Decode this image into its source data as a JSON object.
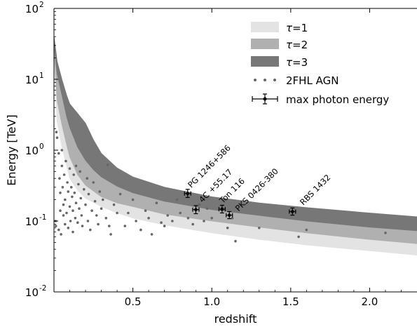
{
  "chart_data": {
    "type": "line",
    "xlabel": "redshift",
    "ylabel": "Energy [TeV]",
    "xlim": [
      0.0,
      2.3
    ],
    "ylim": [
      0.01,
      100
    ],
    "yscale": "log",
    "x_ticks": [
      {
        "value": 0.5,
        "label": "0.5"
      },
      {
        "value": 1.0,
        "label": "1.0"
      },
      {
        "value": 1.5,
        "label": "1.5"
      },
      {
        "value": 2.0,
        "label": "2.0"
      }
    ],
    "y_ticks": [
      {
        "value": 0.01,
        "base": "10",
        "exp": "-2"
      },
      {
        "value": 0.1,
        "base": "10",
        "exp": "-1"
      },
      {
        "value": 1,
        "base": "10",
        "exp": "0"
      },
      {
        "value": 10,
        "base": "10",
        "exp": "1"
      },
      {
        "value": 100,
        "base": "10",
        "exp": "2"
      }
    ],
    "legend_position": "upper right",
    "bands": [
      {
        "name": "τ=1",
        "tau": "τ",
        "suffix": "=1",
        "color": "#e3e3e3",
        "z": [
          0.001,
          0.02,
          0.05,
          0.08,
          0.1,
          0.15,
          0.2,
          0.3,
          0.4,
          0.5,
          0.7,
          1.0,
          1.3,
          1.6,
          2.0,
          2.3
        ],
        "upper": [
          25,
          5.0,
          2.3,
          1.2,
          0.8,
          0.45,
          0.32,
          0.22,
          0.18,
          0.16,
          0.125,
          0.1,
          0.082,
          0.068,
          0.055,
          0.048
        ],
        "lower": [
          18,
          2.5,
          1.1,
          0.6,
          0.4,
          0.27,
          0.21,
          0.16,
          0.13,
          0.11,
          0.088,
          0.068,
          0.055,
          0.046,
          0.038,
          0.033
        ]
      },
      {
        "name": "τ=2",
        "tau": "τ",
        "suffix": "=2",
        "color": "#b0b0b0",
        "z": [
          0.001,
          0.02,
          0.05,
          0.08,
          0.1,
          0.15,
          0.2,
          0.3,
          0.4,
          0.5,
          0.7,
          1.0,
          1.3,
          1.6,
          2.0,
          2.3
        ],
        "upper": [
          30,
          12,
          6.0,
          3.0,
          2.1,
          1.1,
          0.72,
          0.42,
          0.31,
          0.25,
          0.19,
          0.145,
          0.12,
          0.1,
          0.082,
          0.073
        ],
        "lower": [
          25,
          5.0,
          2.3,
          1.2,
          0.8,
          0.45,
          0.32,
          0.22,
          0.18,
          0.16,
          0.125,
          0.1,
          0.082,
          0.068,
          0.055,
          0.048
        ]
      },
      {
        "name": "τ=3",
        "tau": "τ",
        "suffix": "=3",
        "color": "#777777",
        "z": [
          0.001,
          0.02,
          0.05,
          0.08,
          0.1,
          0.15,
          0.2,
          0.25,
          0.3,
          0.4,
          0.5,
          0.7,
          1.0,
          1.3,
          1.6,
          2.0,
          2.3
        ],
        "upper": [
          40,
          18,
          10,
          6.0,
          4.5,
          3.3,
          2.4,
          1.4,
          0.9,
          0.56,
          0.42,
          0.3,
          0.22,
          0.18,
          0.155,
          0.13,
          0.115
        ],
        "lower": [
          30,
          12,
          6.0,
          3.0,
          2.1,
          1.1,
          0.72,
          0.53,
          0.42,
          0.31,
          0.25,
          0.19,
          0.145,
          0.12,
          0.1,
          0.082,
          0.073
        ]
      }
    ],
    "agn_series": {
      "name": "2FHL AGN",
      "color": "#666666",
      "points": [
        [
          0.01,
          0.1
        ],
        [
          0.012,
          0.085
        ],
        [
          0.015,
          1.8
        ],
        [
          0.02,
          1.5
        ],
        [
          0.03,
          0.9
        ],
        [
          0.03,
          0.075
        ],
        [
          0.035,
          0.4
        ],
        [
          0.04,
          0.25
        ],
        [
          0.04,
          0.14
        ],
        [
          0.045,
          0.065
        ],
        [
          0.05,
          0.6
        ],
        [
          0.05,
          1.0
        ],
        [
          0.055,
          0.3
        ],
        [
          0.06,
          0.17
        ],
        [
          0.06,
          0.12
        ],
        [
          0.065,
          0.45
        ],
        [
          0.07,
          0.2
        ],
        [
          0.07,
          0.09
        ],
        [
          0.075,
          0.7
        ],
        [
          0.08,
          0.13
        ],
        [
          0.085,
          0.35
        ],
        [
          0.09,
          0.08
        ],
        [
          0.09,
          0.26
        ],
        [
          0.1,
          0.16
        ],
        [
          0.1,
          0.55
        ],
        [
          0.105,
          0.1
        ],
        [
          0.11,
          0.3
        ],
        [
          0.115,
          0.22
        ],
        [
          0.12,
          0.07
        ],
        [
          0.12,
          0.14
        ],
        [
          0.125,
          0.45
        ],
        [
          0.13,
          0.25
        ],
        [
          0.135,
          0.11
        ],
        [
          0.14,
          0.6
        ],
        [
          0.14,
          0.18
        ],
        [
          0.15,
          0.095
        ],
        [
          0.155,
          0.33
        ],
        [
          0.16,
          0.15
        ],
        [
          0.165,
          0.5
        ],
        [
          0.17,
          0.21
        ],
        [
          0.175,
          0.12
        ],
        [
          0.18,
          0.085
        ],
        [
          0.19,
          0.28
        ],
        [
          0.2,
          0.17
        ],
        [
          0.21,
          0.4
        ],
        [
          0.215,
          0.1
        ],
        [
          0.22,
          0.24
        ],
        [
          0.23,
          0.075
        ],
        [
          0.24,
          0.14
        ],
        [
          0.25,
          0.35
        ],
        [
          0.26,
          0.19
        ],
        [
          0.27,
          0.12
        ],
        [
          0.28,
          0.09
        ],
        [
          0.29,
          0.26
        ],
        [
          0.3,
          0.15
        ],
        [
          0.31,
          0.2
        ],
        [
          0.33,
          0.11
        ],
        [
          0.34,
          0.62
        ],
        [
          0.35,
          0.085
        ],
        [
          0.36,
          0.065
        ],
        [
          0.38,
          0.17
        ],
        [
          0.4,
          0.13
        ],
        [
          0.42,
          0.24
        ],
        [
          0.45,
          0.085
        ],
        [
          0.47,
          0.13
        ],
        [
          0.5,
          0.2
        ],
        [
          0.52,
          0.1
        ],
        [
          0.55,
          0.075
        ],
        [
          0.58,
          0.14
        ],
        [
          0.6,
          0.11
        ],
        [
          0.62,
          0.065
        ],
        [
          0.65,
          0.18
        ],
        [
          0.68,
          0.095
        ],
        [
          0.7,
          0.085
        ],
        [
          0.72,
          0.12
        ],
        [
          0.75,
          0.1
        ],
        [
          0.78,
          0.2
        ],
        [
          0.8,
          0.13
        ],
        [
          0.85,
          0.11
        ],
        [
          0.88,
          0.09
        ],
        [
          0.92,
          0.17
        ],
        [
          0.95,
          0.1
        ],
        [
          0.97,
          0.15
        ],
        [
          1.0,
          0.11
        ],
        [
          1.1,
          0.08
        ],
        [
          1.13,
          0.11
        ],
        [
          1.15,
          0.052
        ],
        [
          1.3,
          0.08
        ],
        [
          1.55,
          0.06
        ],
        [
          1.6,
          0.075
        ],
        [
          2.1,
          0.068
        ]
      ]
    },
    "max_photon_series": {
      "name": "max photon energy",
      "points": [
        {
          "label": "PG 1246+586",
          "z": 0.847,
          "zerr": 0.02,
          "e": 0.245,
          "elo": 0.215,
          "ehi": 0.28
        },
        {
          "label": "4C +55.17",
          "z": 0.899,
          "zerr": 0.02,
          "e": 0.145,
          "elo": 0.127,
          "ehi": 0.165
        },
        {
          "label": "Ton 116",
          "z": 1.065,
          "zerr": 0.02,
          "e": 0.147,
          "elo": 0.13,
          "ehi": 0.167
        },
        {
          "label": "PKS 0426-380",
          "z": 1.111,
          "zerr": 0.02,
          "e": 0.121,
          "elo": 0.108,
          "ehi": 0.136
        },
        {
          "label": "RBS 1432",
          "z": 1.511,
          "zerr": 0.02,
          "e": 0.136,
          "elo": 0.121,
          "ehi": 0.153
        }
      ]
    },
    "annotations": [
      {
        "text": "PG 1246+586",
        "x": 0.87,
        "y": 0.29
      },
      {
        "text": "4C +55.17",
        "x": 0.94,
        "y": 0.18
      },
      {
        "text": "Ton 116",
        "x": 1.07,
        "y": 0.175
      },
      {
        "text": "PKS 0426-380",
        "x": 1.17,
        "y": 0.135
      },
      {
        "text": "RBS 1432",
        "x": 1.58,
        "y": 0.165
      }
    ]
  }
}
